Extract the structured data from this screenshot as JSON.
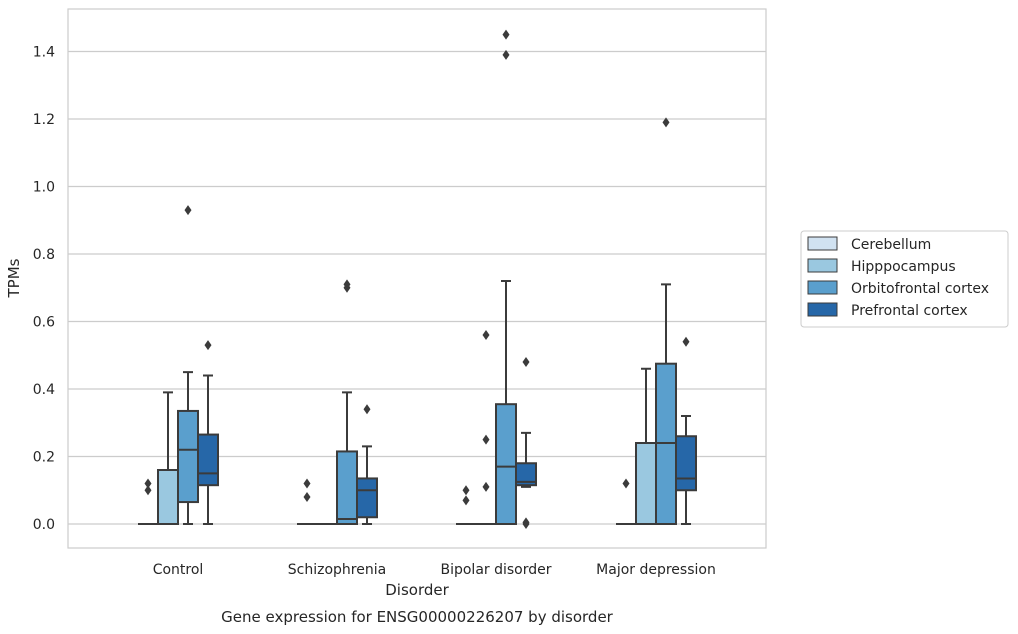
{
  "chart_data": {
    "type": "box",
    "xlabel": "Disorder",
    "ylabel": "TPMs",
    "caption": "Gene expression for ENSG00000226207 by disorder",
    "ylim": [
      -0.07,
      1.53
    ],
    "yticks": [
      "0.0",
      "0.2",
      "0.4",
      "0.6",
      "0.8",
      "1.0",
      "1.2",
      "1.4"
    ],
    "grid": "horizontal",
    "legend_position": "right",
    "categories": [
      "Control",
      "Schizophrenia",
      "Bipolar disorder",
      "Major depression"
    ],
    "series": [
      {
        "name": "Cerebellum",
        "color": "#d1e2f1",
        "boxes": [
          {
            "q1": 0,
            "median": 0,
            "q3": 0,
            "whisker_low": 0,
            "whisker_high": 0,
            "outliers": [
              0.1,
              0.12
            ]
          },
          {
            "q1": 0,
            "median": 0,
            "q3": 0,
            "whisker_low": 0,
            "whisker_high": 0,
            "outliers": [
              0.08,
              0.12
            ]
          },
          {
            "q1": 0,
            "median": 0,
            "q3": 0,
            "whisker_low": 0,
            "whisker_high": 0,
            "outliers": [
              0.07,
              0.1
            ]
          },
          {
            "q1": 0,
            "median": 0,
            "q3": 0,
            "whisker_low": 0,
            "whisker_high": 0,
            "outliers": [
              0.12
            ]
          }
        ]
      },
      {
        "name": "Hipppocampus",
        "color": "#9ac8e0",
        "boxes": [
          {
            "q1": 0,
            "median": 0,
            "q3": 0.16,
            "whisker_low": 0,
            "whisker_high": 0.39,
            "outliers": []
          },
          {
            "q1": 0,
            "median": 0,
            "q3": 0,
            "whisker_low": 0,
            "whisker_high": 0,
            "outliers": []
          },
          {
            "q1": 0,
            "median": 0,
            "q3": 0,
            "whisker_low": 0,
            "whisker_high": 0,
            "outliers": [
              0.11,
              0.25,
              0.56
            ]
          },
          {
            "q1": 0,
            "median": 0,
            "q3": 0.24,
            "whisker_low": 0,
            "whisker_high": 0.46,
            "outliers": []
          }
        ]
      },
      {
        "name": "Orbitofrontal cortex",
        "color": "#5a9fcd",
        "boxes": [
          {
            "q1": 0.065,
            "median": 0.22,
            "q3": 0.335,
            "whisker_low": 0,
            "whisker_high": 0.45,
            "outliers": [
              0.93
            ]
          },
          {
            "q1": 0,
            "median": 0.015,
            "q3": 0.215,
            "whisker_low": 0,
            "whisker_high": 0.39,
            "outliers": [
              0.7,
              0.71
            ]
          },
          {
            "q1": 0,
            "median": 0.17,
            "q3": 0.355,
            "whisker_low": 0,
            "whisker_high": 0.72,
            "outliers": [
              1.39,
              1.45
            ]
          },
          {
            "q1": 0,
            "median": 0.24,
            "q3": 0.475,
            "whisker_low": 0,
            "whisker_high": 0.71,
            "outliers": [
              1.19
            ]
          }
        ]
      },
      {
        "name": "Prefrontal cortex",
        "color": "#2667a8",
        "boxes": [
          {
            "q1": 0.115,
            "median": 0.15,
            "q3": 0.265,
            "whisker_low": 0,
            "whisker_high": 0.44,
            "outliers": [
              0.53
            ]
          },
          {
            "q1": 0.02,
            "median": 0.1,
            "q3": 0.135,
            "whisker_low": 0,
            "whisker_high": 0.23,
            "outliers": [
              0.34
            ]
          },
          {
            "q1": 0.115,
            "median": 0.125,
            "q3": 0.18,
            "whisker_low": 0.11,
            "whisker_high": 0.27,
            "outliers": [
              0.0,
              0.005,
              0.48
            ]
          },
          {
            "q1": 0.1,
            "median": 0.135,
            "q3": 0.26,
            "whisker_low": 0,
            "whisker_high": 0.32,
            "outliers": [
              0.54
            ]
          }
        ]
      }
    ]
  }
}
